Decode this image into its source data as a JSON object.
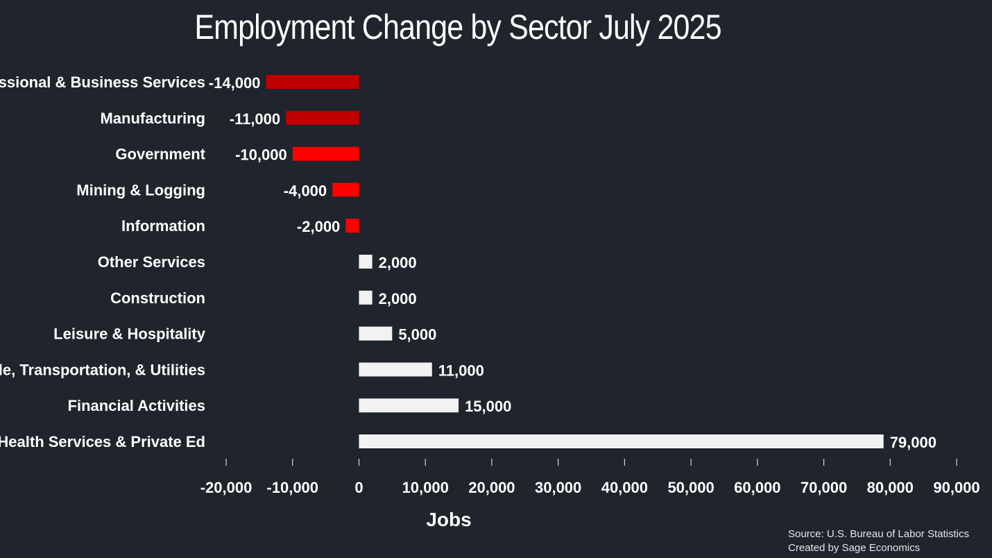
{
  "chart_data": {
    "type": "bar",
    "orientation": "horizontal",
    "title": "Employment Change by Sector July 2025",
    "xlabel": "Jobs",
    "ylabel": "",
    "xlim": [
      -20000,
      90000
    ],
    "xticks": [
      -20000,
      -10000,
      0,
      10000,
      20000,
      30000,
      40000,
      50000,
      60000,
      70000,
      80000,
      90000
    ],
    "xtick_labels": [
      "-20,000",
      "-10,000",
      "0",
      "10,000",
      "20,000",
      "30,000",
      "40,000",
      "50,000",
      "60,000",
      "70,000",
      "80,000",
      "90,000"
    ],
    "grid": false,
    "categories": [
      "Professional & Business Services",
      "Manufacturing",
      "Government",
      "Mining & Logging",
      "Information",
      "Other Services",
      "Construction",
      "Leisure & Hospitality",
      "Trade, Transportation, & Utilities",
      "Financial Activities",
      "Health Services & Private Ed"
    ],
    "values": [
      -14000,
      -11000,
      -10000,
      -4000,
      -2000,
      2000,
      2000,
      5000,
      11000,
      15000,
      79000
    ],
    "value_labels": [
      "-14,000",
      "-11,000",
      "-10,000",
      "-4,000",
      "-2,000",
      "2,000",
      "2,000",
      "5,000",
      "11,000",
      "15,000",
      "79,000"
    ],
    "bar_colors": [
      "#c00000",
      "#c00000",
      "#ff0000",
      "#ff0000",
      "#ff0000",
      "#f2f2f2",
      "#f2f2f2",
      "#f2f2f2",
      "#f2f2f2",
      "#f2f2f2",
      "#f2f2f2"
    ]
  },
  "source": {
    "line1": "Source: U.S. Bureau of Labor Statistics",
    "line2": "Created by Sage Economics"
  },
  "colors": {
    "background": "#20242c",
    "text": "#ffffff"
  }
}
